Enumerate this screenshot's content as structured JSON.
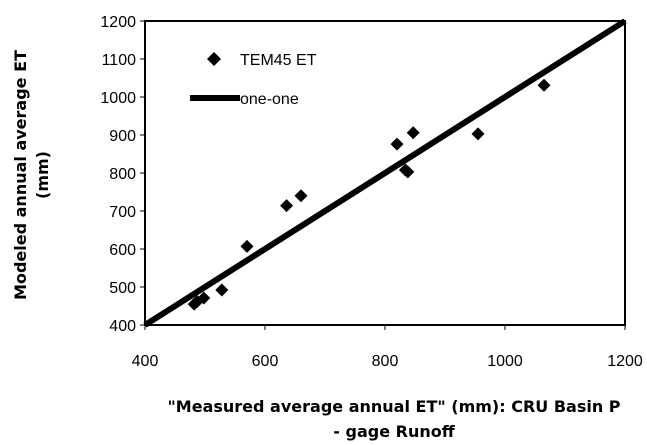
{
  "chart_data": {
    "type": "scatter",
    "title": "",
    "xlabel": "\"Measured average annual ET\" (mm): CRU Basin P - gage Runoff",
    "xlabel_lines": [
      "\"Measured average annual ET\" (mm): CRU Basin P",
      "- gage Runoff"
    ],
    "ylabel": "Modeled annual average ET (mm)",
    "ylabel_lines": [
      "Modeled annual average ET",
      "(mm)"
    ],
    "xlim": [
      400,
      1200
    ],
    "ylim": [
      400,
      1200
    ],
    "x_ticks": [
      400,
      600,
      800,
      1000,
      1200
    ],
    "y_ticks": [
      400,
      500,
      600,
      700,
      800,
      900,
      1000,
      1100,
      1200
    ],
    "grid": false,
    "legend_position": "top-left",
    "series": [
      {
        "name": "TEM45 ET",
        "kind": "scatter",
        "marker": "diamond",
        "color": "#000000",
        "points": [
          {
            "x": 482,
            "y": 455
          },
          {
            "x": 487,
            "y": 462
          },
          {
            "x": 498,
            "y": 471
          },
          {
            "x": 528,
            "y": 492
          },
          {
            "x": 570,
            "y": 607
          },
          {
            "x": 636,
            "y": 714
          },
          {
            "x": 660,
            "y": 740
          },
          {
            "x": 820,
            "y": 876
          },
          {
            "x": 834,
            "y": 808
          },
          {
            "x": 838,
            "y": 803
          },
          {
            "x": 847,
            "y": 906
          },
          {
            "x": 955,
            "y": 903
          },
          {
            "x": 1065,
            "y": 1031
          }
        ]
      },
      {
        "name": "one-one",
        "kind": "line",
        "color": "#000000",
        "points": [
          {
            "x": 400,
            "y": 400
          },
          {
            "x": 1200,
            "y": 1200
          }
        ]
      }
    ]
  }
}
